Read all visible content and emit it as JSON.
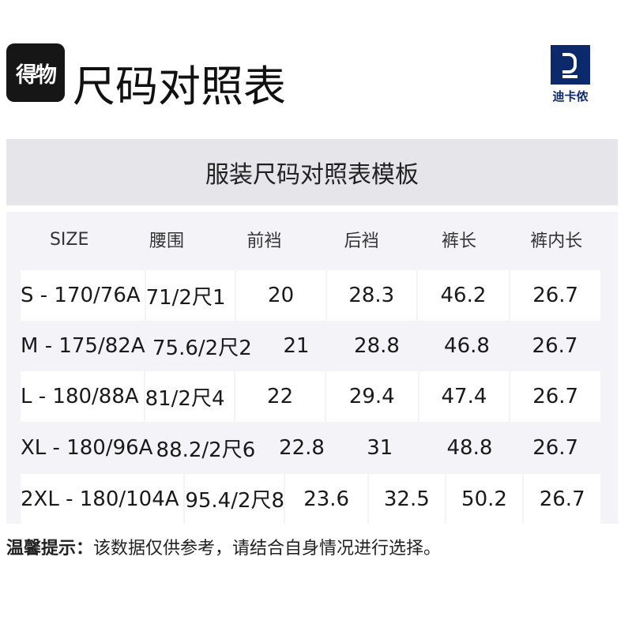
{
  "header": {
    "logo_text": "得物",
    "title": "尺码对照表",
    "brand_name": "迪卡侬",
    "brand_color": "#0c2a6b"
  },
  "banner": {
    "title": "服装尺码对照表模板"
  },
  "table": {
    "columns": [
      "SIZE",
      "腰围",
      "前裆",
      "后裆",
      "裤长",
      "裤内长"
    ],
    "rows": [
      [
        "S - 170/76A",
        "71/2尺1",
        "20",
        "28.3",
        "46.2",
        "26.7"
      ],
      [
        "M - 175/82A",
        "75.6/2尺2",
        "21",
        "28.8",
        "46.8",
        "26.7"
      ],
      [
        "L - 180/88A",
        "81/2尺4",
        "22",
        "29.4",
        "47.4",
        "26.7"
      ],
      [
        "XL - 180/96A",
        "88.2/2尺6",
        "22.8",
        "31",
        "48.8",
        "26.7"
      ],
      [
        "2XL - 180/104A",
        "95.4/2尺8",
        "23.6",
        "32.5",
        "50.2",
        "26.7"
      ]
    ]
  },
  "note": {
    "label": "温馨提示：",
    "text": "该数据仅供参考，请结合自身情况进行选择。"
  }
}
